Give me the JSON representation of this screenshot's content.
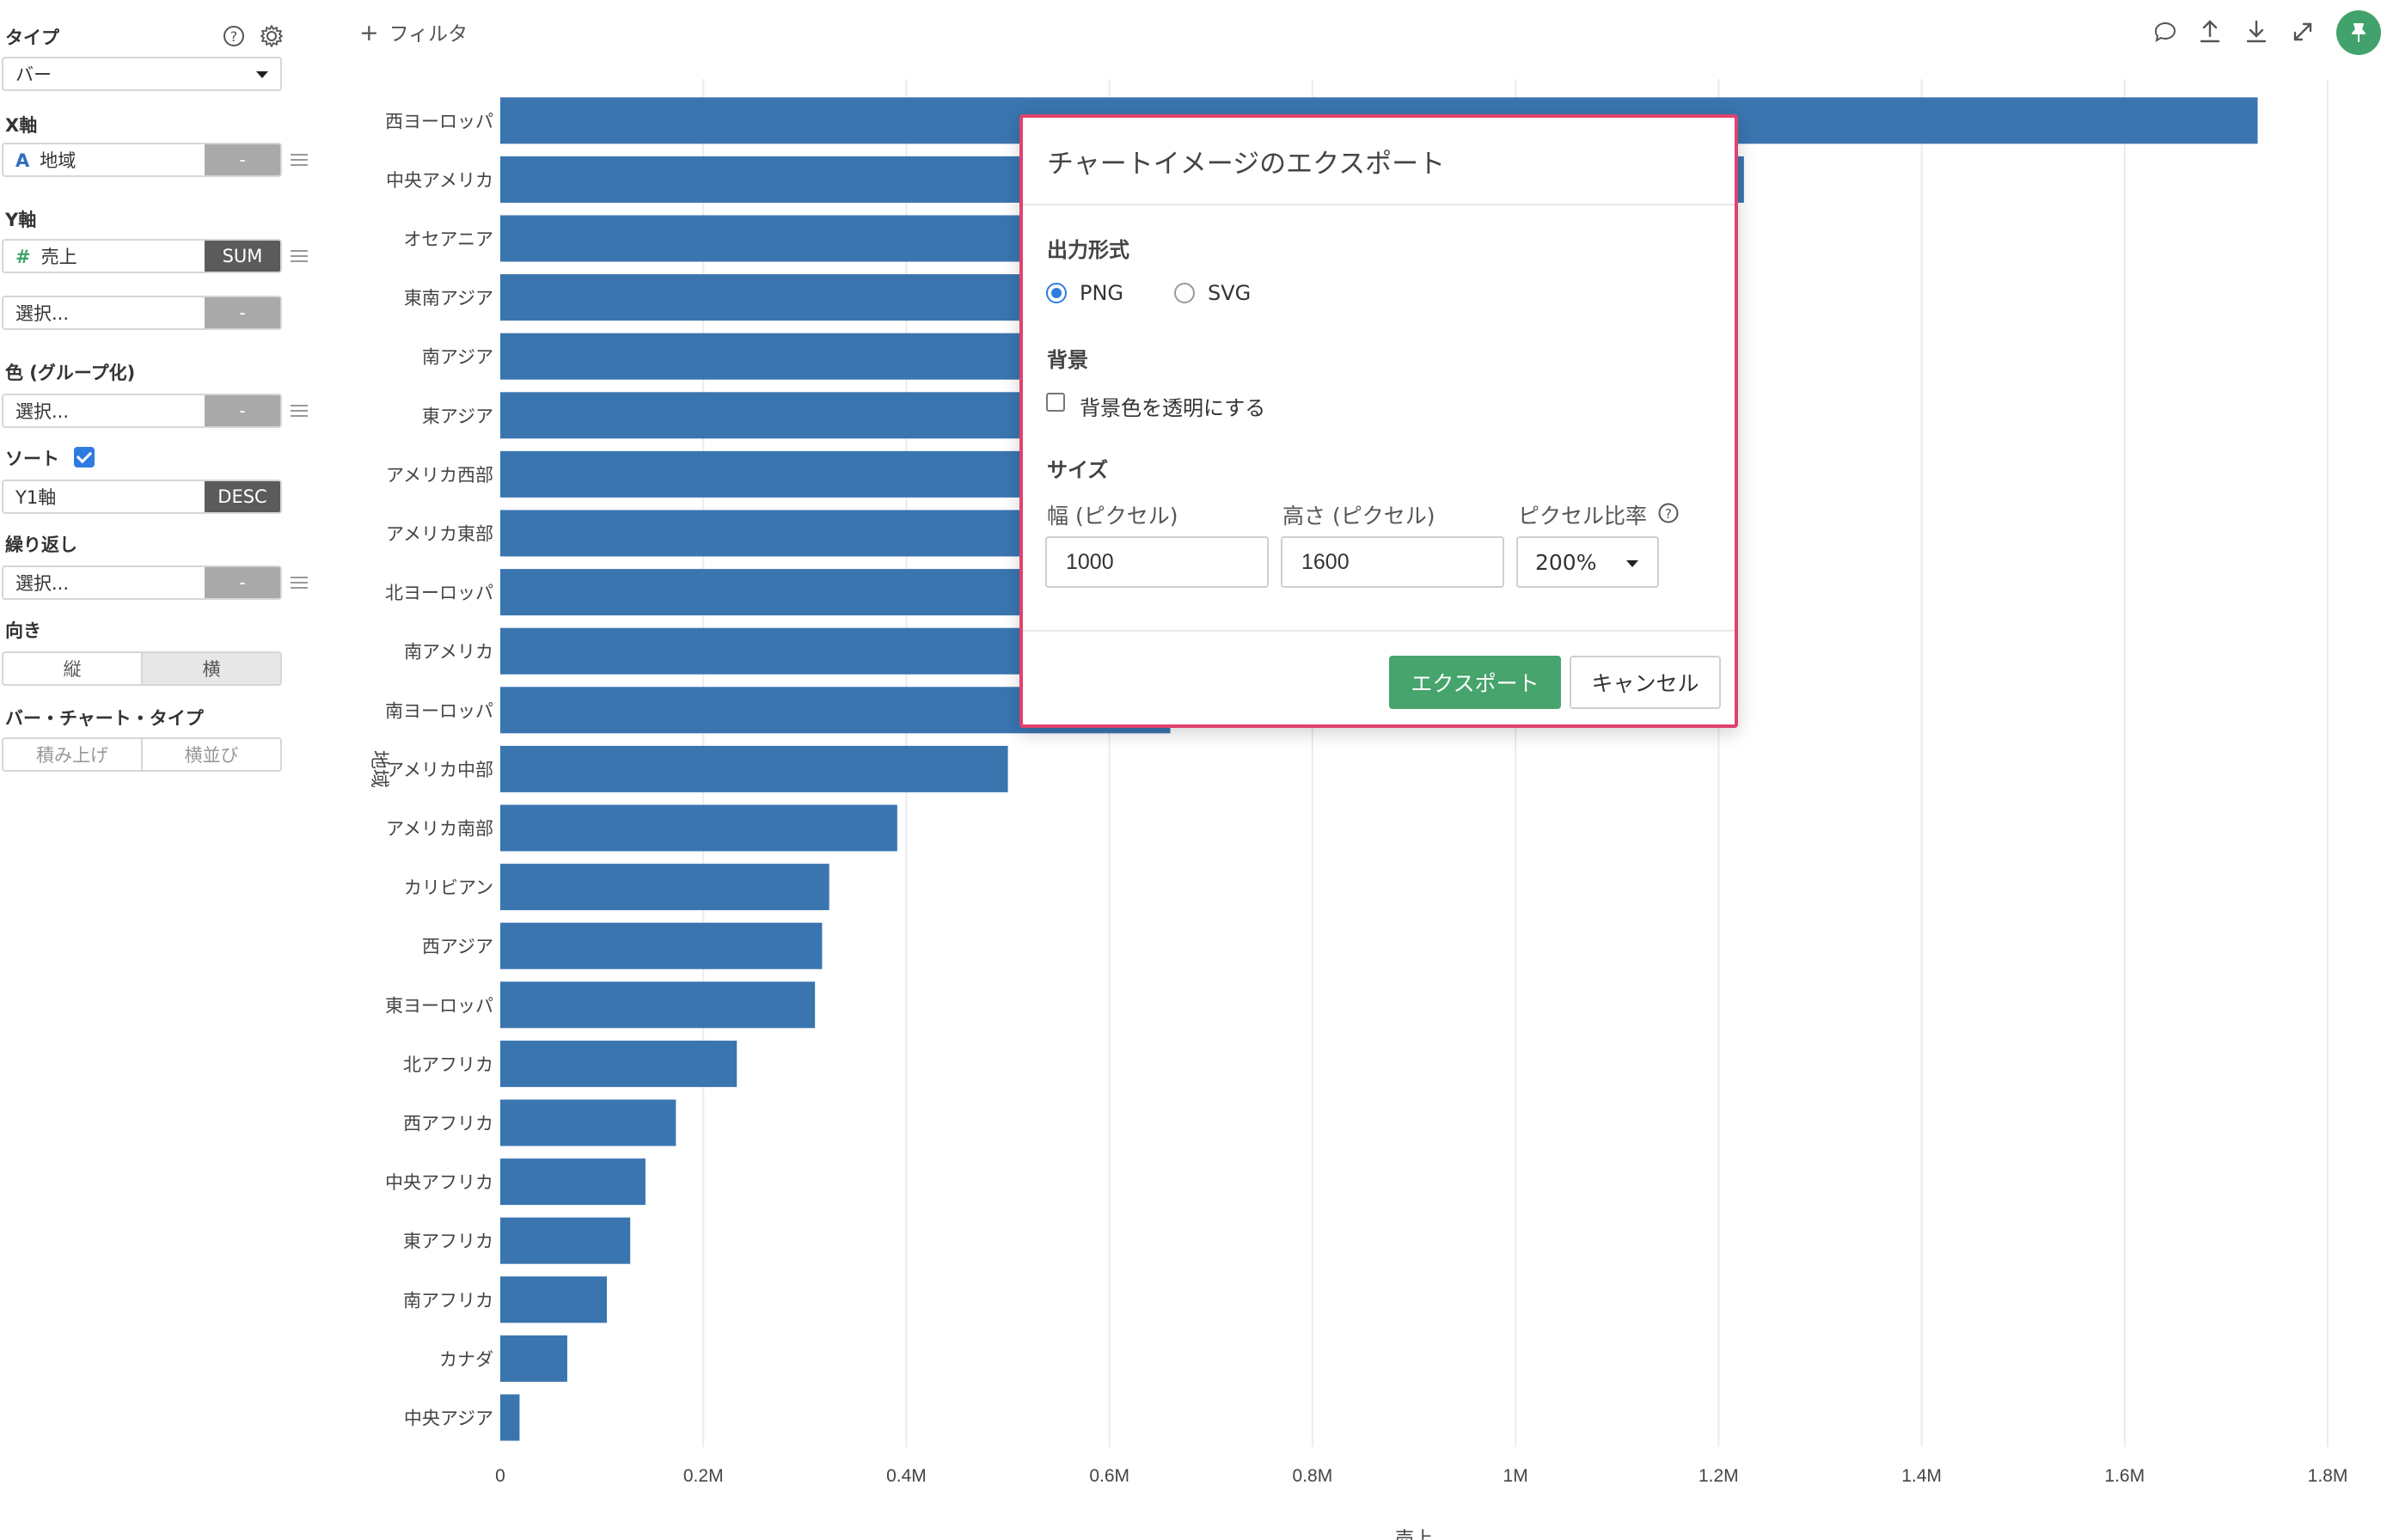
{
  "sidebar": {
    "type_label": "タイプ",
    "type_value": "バー",
    "x_label": "X軸",
    "x_field_type": "A",
    "x_field": "地域",
    "x_agg": "-",
    "y_label": "Y軸",
    "y_field_type": "#",
    "y_field": "売上",
    "y_agg": "SUM",
    "y2_field": "選択...",
    "y2_agg": "-",
    "color_label": "色 (グループ化)",
    "color_field": "選択...",
    "color_agg": "-",
    "sort_label": "ソート",
    "sort_checked": true,
    "sort_field": "Y1軸",
    "sort_order": "DESC",
    "repeat_label": "繰り返し",
    "repeat_field": "選択...",
    "repeat_agg": "-",
    "orientation_label": "向き",
    "orientation_options": [
      "縦",
      "横"
    ],
    "orientation_selected": "横",
    "bar_type_label": "バー・チャート・タイプ",
    "bar_type_options": [
      "積み上げ",
      "横並び"
    ]
  },
  "toolbar": {
    "filter_label": "フィルタ",
    "icons": [
      "comment-icon",
      "upload-icon",
      "download-icon",
      "expand-icon",
      "pin-icon"
    ],
    "accent_color": "#41a36b"
  },
  "chart_data": {
    "type": "bar",
    "orientation": "horizontal",
    "categories": [
      "西ヨーロッパ",
      "中央アメリカ",
      "オセアニア",
      "東南アジア",
      "南アジア",
      "東アジア",
      "アメリカ西部",
      "アメリカ東部",
      "北ヨーロッパ",
      "南アメリカ",
      "南ヨーロッパ",
      "アメリカ中部",
      "アメリカ南部",
      "カリビアン",
      "西アジア",
      "東ヨーロッパ",
      "北アフリカ",
      "西アフリカ",
      "中央アフリカ",
      "東アフリカ",
      "南アフリカ",
      "カナダ",
      "中央アジア"
    ],
    "values": [
      1731000,
      1225000,
      1100000,
      885000,
      740000,
      720000,
      705000,
      700000,
      690000,
      680000,
      660000,
      500000,
      391000,
      324000,
      317000,
      310000,
      233000,
      173000,
      143000,
      128000,
      105000,
      66000,
      19000
    ],
    "xlabel": "売上",
    "ylabel": "地域",
    "xlim": [
      0,
      1800000
    ],
    "xticks": [
      0,
      200000,
      400000,
      600000,
      800000,
      1000000,
      1200000,
      1400000,
      1600000,
      1800000
    ],
    "xtick_labels": [
      "0",
      "0.2M",
      "0.4M",
      "0.6M",
      "0.8M",
      "1M",
      "1.2M",
      "1.4M",
      "1.6M",
      "1.8M"
    ],
    "grid": true,
    "bar_color": "#3a75b0"
  },
  "modal": {
    "title": "チャートイメージのエクスポート",
    "format_label": "出力形式",
    "format_options": [
      "PNG",
      "SVG"
    ],
    "format_selected": "PNG",
    "background_label": "背景",
    "transparent_label": "背景色を透明にする",
    "transparent_checked": false,
    "size_label": "サイズ",
    "width_label": "幅 (ピクセル)",
    "width_value": "1000",
    "height_label": "高さ (ピクセル)",
    "height_value": "1600",
    "ratio_label": "ピクセル比率",
    "ratio_value": "200%",
    "export_button": "エクスポート",
    "cancel_button": "キャンセル",
    "border_color": "#e0426e",
    "primary_color": "#46a46c"
  }
}
